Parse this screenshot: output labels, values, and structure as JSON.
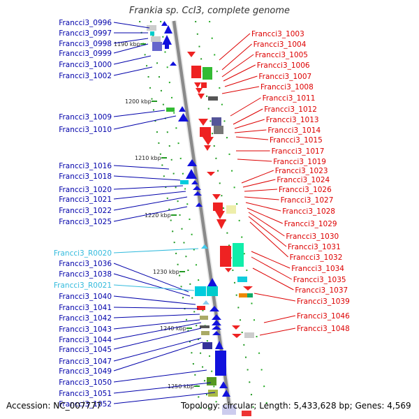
{
  "title": "Frankia sp. CcI3, complete genome",
  "footer": {
    "accession": "Accession: NC_007777",
    "summary": "Topology: circular; Length: 5,433,628 bp; Genes: 4,569"
  },
  "colors": {
    "left_label": "#0000aa",
    "rna_label": "#33bbdd",
    "right_label": "#dd0000",
    "backbone": "#8a8a8a"
  },
  "scale_labels": [
    "1190 kbp",
    "1200 kbp",
    "1210 kbp",
    "1220 kbp",
    "1230 kbp",
    "1240 kbp",
    "1250 kbp"
  ],
  "left_genes": [
    {
      "label": "Francci3_0996",
      "type": "gene"
    },
    {
      "label": "Francci3_0997",
      "type": "gene"
    },
    {
      "label": "Francci3_0998",
      "type": "gene"
    },
    {
      "label": "Francci3_0999",
      "type": "gene"
    },
    {
      "label": "Francci3_1000",
      "type": "gene"
    },
    {
      "label": "Francci3_1002",
      "type": "gene"
    },
    {
      "label": "Francci3_1009",
      "type": "gene"
    },
    {
      "label": "Francci3_1010",
      "type": "gene"
    },
    {
      "label": "Francci3_1016",
      "type": "gene"
    },
    {
      "label": "Francci3_1018",
      "type": "gene"
    },
    {
      "label": "Francci3_1020",
      "type": "gene"
    },
    {
      "label": "Francci3_1021",
      "type": "gene"
    },
    {
      "label": "Francci3_1022",
      "type": "gene"
    },
    {
      "label": "Francci3_1025",
      "type": "gene"
    },
    {
      "label": "Francci3_R0020",
      "type": "rna"
    },
    {
      "label": "Francci3_1036",
      "type": "gene"
    },
    {
      "label": "Francci3_1038",
      "type": "gene"
    },
    {
      "label": "Francci3_R0021",
      "type": "rna"
    },
    {
      "label": "Francci3_1040",
      "type": "gene"
    },
    {
      "label": "Francci3_1041",
      "type": "gene"
    },
    {
      "label": "Francci3_1042",
      "type": "gene"
    },
    {
      "label": "Francci3_1043",
      "type": "gene"
    },
    {
      "label": "Francci3_1044",
      "type": "gene"
    },
    {
      "label": "Francci3_1045",
      "type": "gene"
    },
    {
      "label": "Francci3_1047",
      "type": "gene"
    },
    {
      "label": "Francci3_1049",
      "type": "gene"
    },
    {
      "label": "Francci3_1050",
      "type": "gene"
    },
    {
      "label": "Francci3_1051",
      "type": "gene"
    },
    {
      "label": "Francci3_1052",
      "type": "gene"
    }
  ],
  "right_genes": [
    {
      "label": "Francci3_1003"
    },
    {
      "label": "Francci3_1004"
    },
    {
      "label": "Francci3_1005"
    },
    {
      "label": "Francci3_1006"
    },
    {
      "label": "Francci3_1007"
    },
    {
      "label": "Francci3_1008"
    },
    {
      "label": "Francci3_1011"
    },
    {
      "label": "Francci3_1012"
    },
    {
      "label": "Francci3_1013"
    },
    {
      "label": "Francci3_1014"
    },
    {
      "label": "Francci3_1015"
    },
    {
      "label": "Francci3_1017"
    },
    {
      "label": "Francci3_1019"
    },
    {
      "label": "Francci3_1023"
    },
    {
      "label": "Francci3_1024"
    },
    {
      "label": "Francci3_1026"
    },
    {
      "label": "Francci3_1027"
    },
    {
      "label": "Francci3_1028"
    },
    {
      "label": "Francci3_1029"
    },
    {
      "label": "Francci3_1030"
    },
    {
      "label": "Francci3_1031"
    },
    {
      "label": "Francci3_1032"
    },
    {
      "label": "Francci3_1034"
    },
    {
      "label": "Francci3_1035"
    },
    {
      "label": "Francci3_1037"
    },
    {
      "label": "Francci3_1039"
    },
    {
      "label": "Francci3_1046"
    },
    {
      "label": "Francci3_1048"
    }
  ]
}
